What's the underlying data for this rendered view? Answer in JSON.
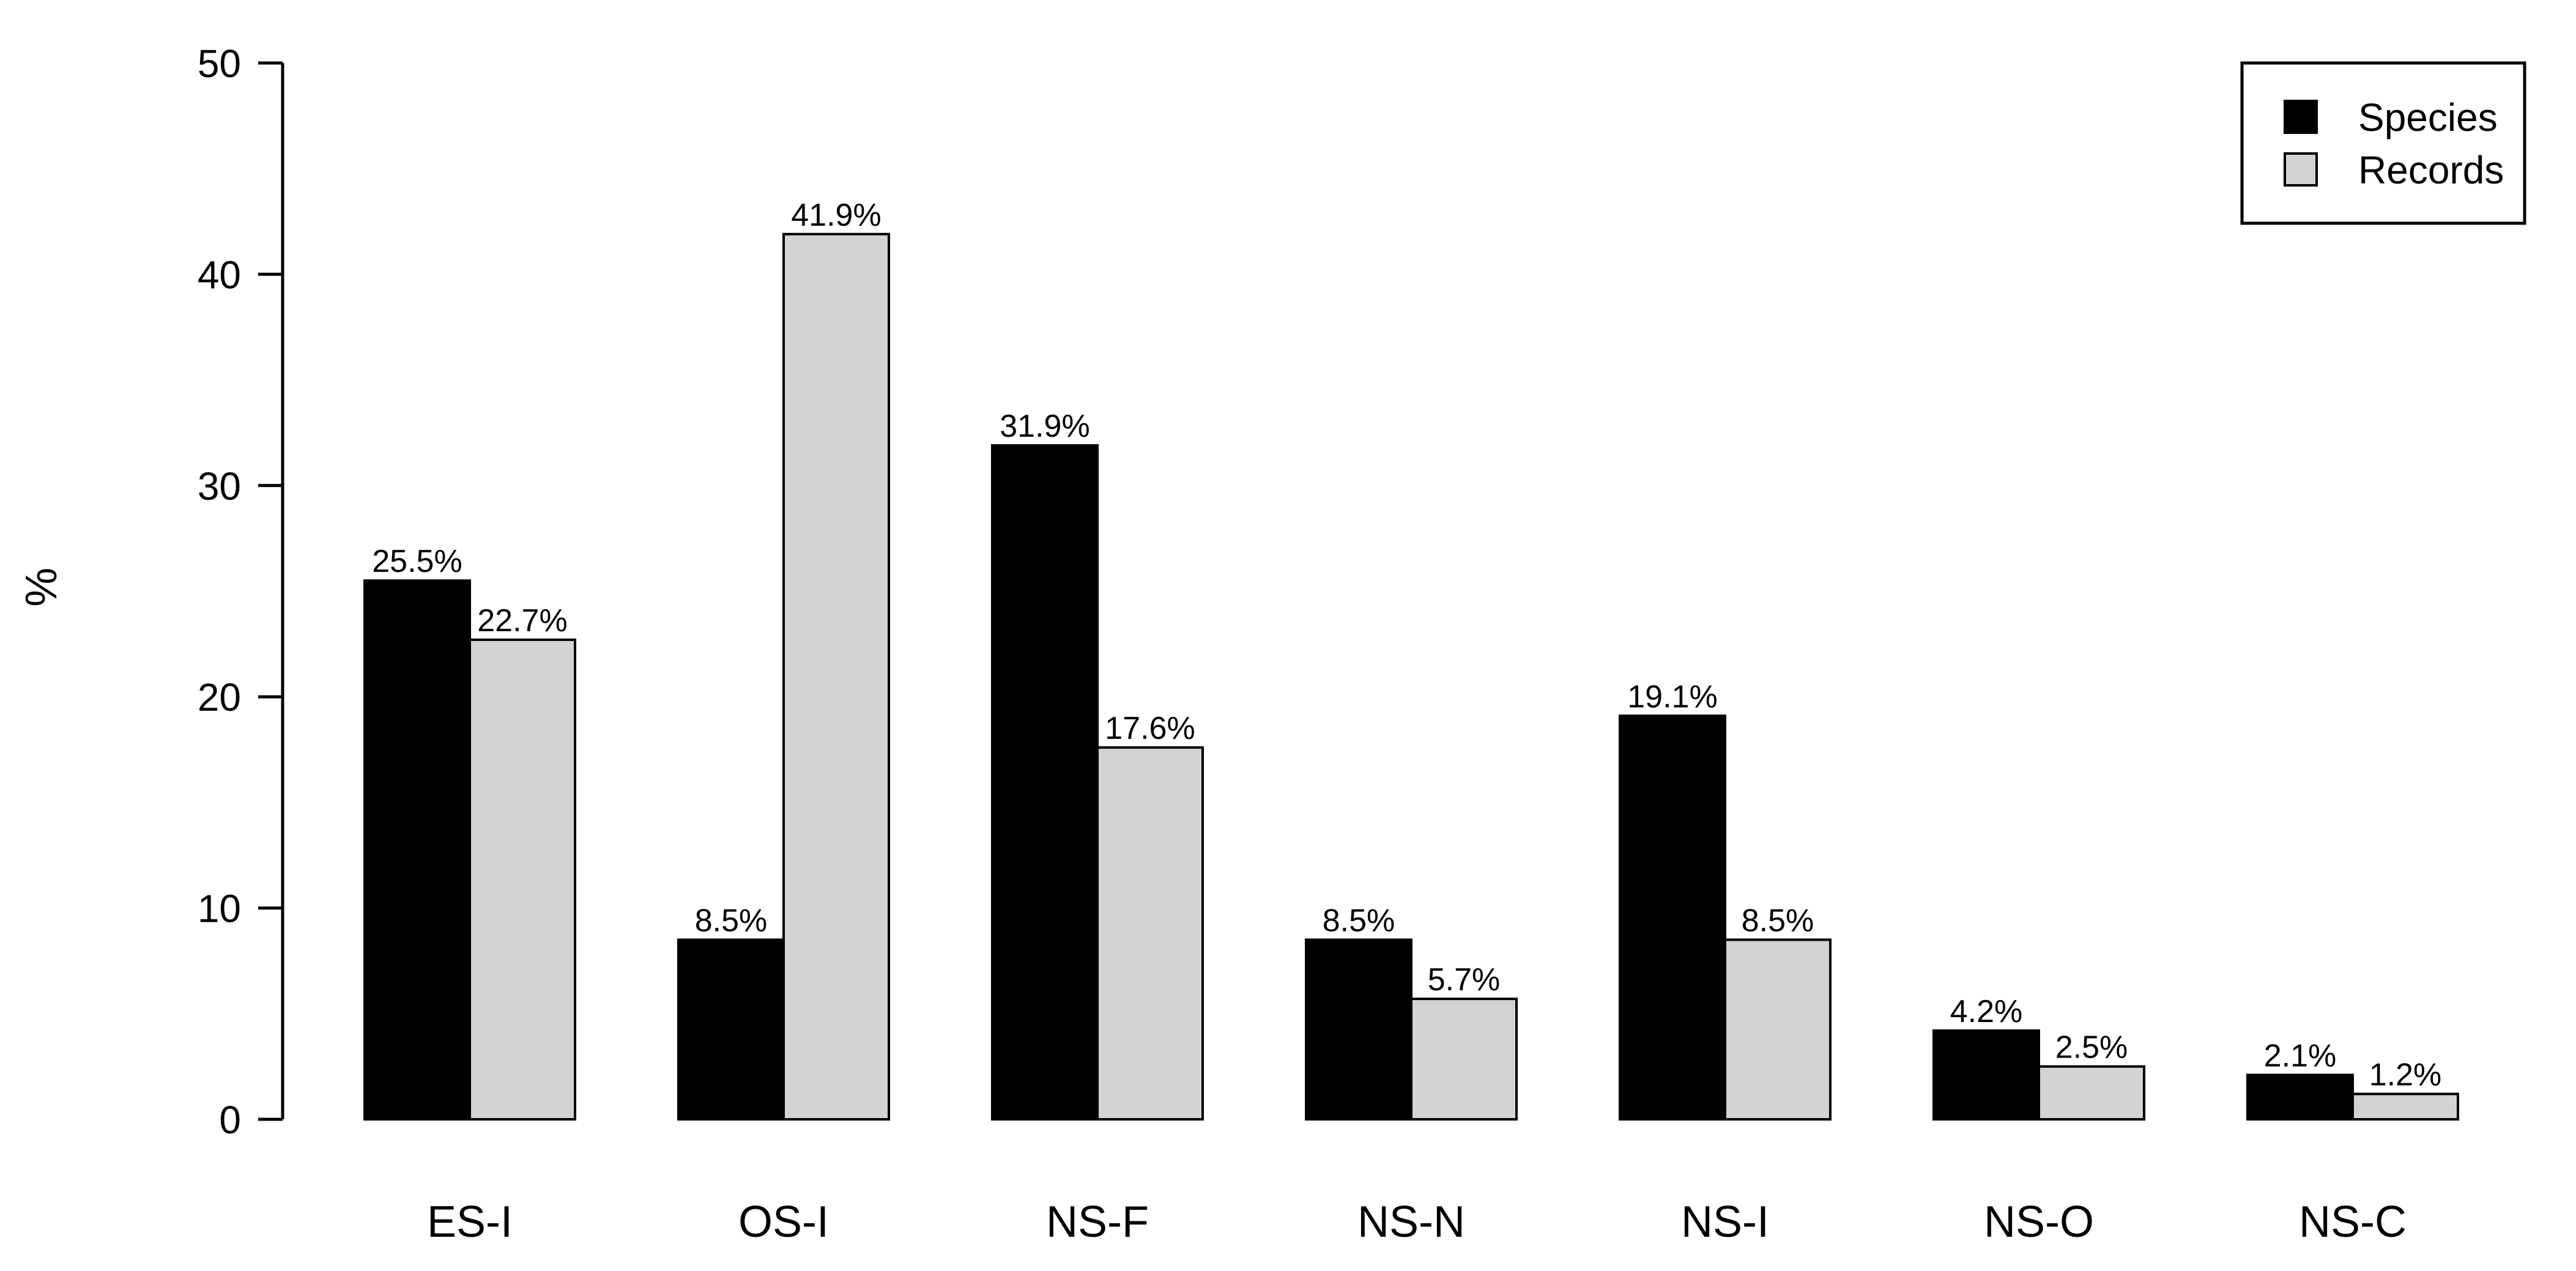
{
  "chart_data": {
    "type": "bar",
    "categories": [
      "ES-I",
      "OS-I",
      "NS-F",
      "NS-N",
      "NS-I",
      "NS-O",
      "NS-C"
    ],
    "series": [
      {
        "name": "Species",
        "color": "#000000",
        "values": [
          25.5,
          8.5,
          31.9,
          8.5,
          19.1,
          4.2,
          2.1
        ],
        "labels": [
          "25.5%",
          "8.5%",
          "31.9%",
          "8.5%",
          "19.1%",
          "4.2%",
          "2.1%"
        ]
      },
      {
        "name": "Records",
        "color": "#d3d3d3",
        "values": [
          22.7,
          41.9,
          17.6,
          5.7,
          8.5,
          2.5,
          1.2
        ],
        "labels": [
          "22.7%",
          "41.9%",
          "17.6%",
          "5.7%",
          "8.5%",
          "2.5%",
          "1.2%"
        ]
      }
    ],
    "title": "",
    "xlabel": "",
    "ylabel": "%",
    "ylim": [
      0,
      50
    ],
    "yticks": [
      0,
      10,
      20,
      30,
      40,
      50
    ],
    "ytick_labels": [
      "0",
      "10",
      "20",
      "30",
      "40",
      "50"
    ],
    "grid": false,
    "legend_position": "top-right"
  }
}
